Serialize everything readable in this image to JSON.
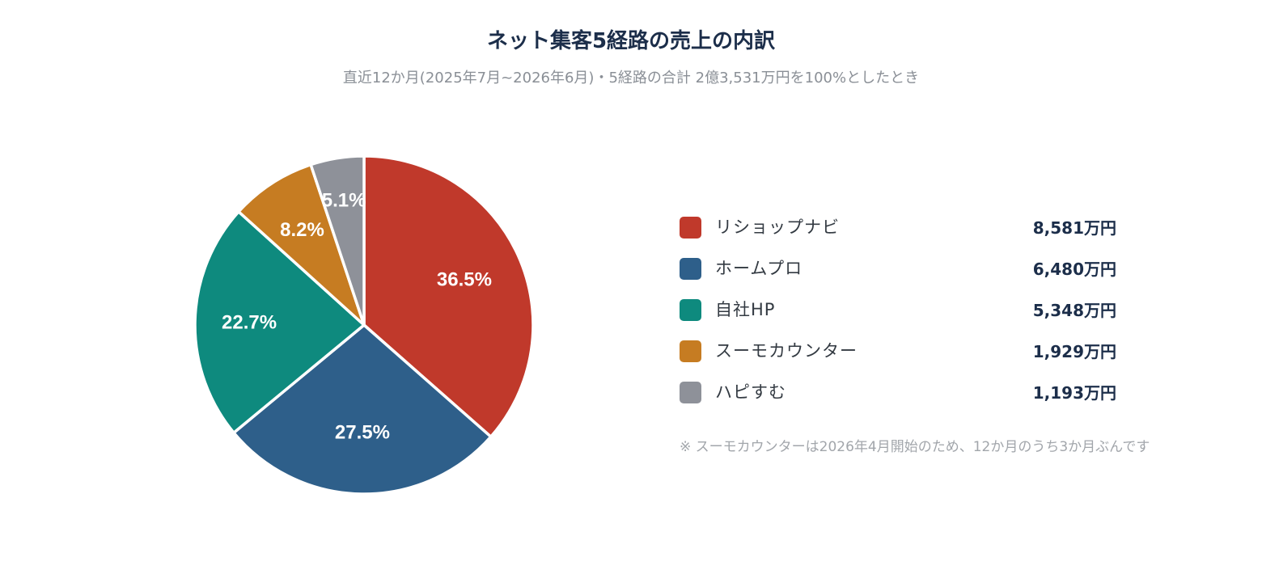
{
  "chart_data": {
    "type": "pie",
    "title": "ネット集客5経路の売上の内訳",
    "subtitle": "直近12か月(2025年7月~2026年6月)・5経路の合計 2億3,531万円を100%としたとき",
    "start_angle_deg": 0,
    "direction": "clockwise",
    "slices": [
      {
        "label": "リショップナビ",
        "percent": 36.5,
        "percent_label": "36.5%",
        "value_label": "8,581万円",
        "color": "#c0392b"
      },
      {
        "label": "ホームプロ",
        "percent": 27.5,
        "percent_label": "27.5%",
        "value_label": "6,480万円",
        "color": "#2e5f8a"
      },
      {
        "label": "自社HP",
        "percent": 22.7,
        "percent_label": "22.7%",
        "value_label": "5,348万円",
        "color": "#0e8a7e"
      },
      {
        "label": "スーモカウンター",
        "percent": 8.2,
        "percent_label": "8.2%",
        "value_label": "1,929万円",
        "color": "#c67c22"
      },
      {
        "label": "ハピすむ",
        "percent": 5.1,
        "percent_label": "5.1%",
        "value_label": "1,193万円",
        "color": "#8e9199"
      }
    ],
    "legend_position": "right",
    "note": "※ スーモカウンターは2026年4月開始のため、12か月のうち3か月ぶんです"
  }
}
